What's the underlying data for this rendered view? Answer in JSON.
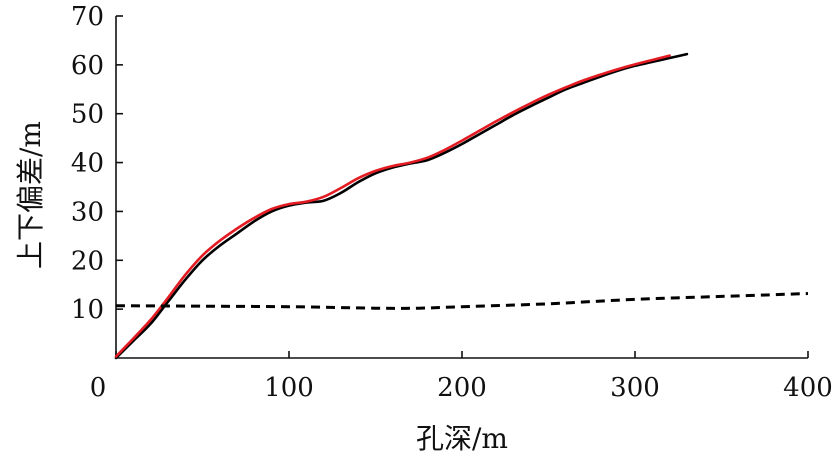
{
  "chart_data": {
    "type": "line",
    "title": "",
    "xlabel": "孔深/m",
    "ylabel": "上下偏差/m",
    "xlim": [
      0,
      400
    ],
    "ylim": [
      0,
      70
    ],
    "x_ticks": [
      0,
      100,
      200,
      300,
      400
    ],
    "y_ticks": [
      10,
      20,
      30,
      40,
      50,
      60,
      70
    ],
    "grid": false,
    "series": [
      {
        "color": "#000000",
        "style": "solid",
        "points": [
          [
            0,
            0
          ],
          [
            10,
            3.5
          ],
          [
            20,
            7
          ],
          [
            30,
            11.5
          ],
          [
            40,
            16
          ],
          [
            50,
            20
          ],
          [
            60,
            23
          ],
          [
            70,
            25.5
          ],
          [
            80,
            28
          ],
          [
            90,
            30
          ],
          [
            100,
            31.2
          ],
          [
            110,
            31.8
          ],
          [
            120,
            32.2
          ],
          [
            130,
            33.8
          ],
          [
            140,
            36
          ],
          [
            150,
            37.8
          ],
          [
            160,
            39
          ],
          [
            170,
            39.8
          ],
          [
            180,
            40.5
          ],
          [
            190,
            42
          ],
          [
            200,
            43.8
          ],
          [
            210,
            45.8
          ],
          [
            220,
            47.8
          ],
          [
            230,
            49.8
          ],
          [
            240,
            51.6
          ],
          [
            250,
            53.3
          ],
          [
            260,
            55
          ],
          [
            270,
            56.3
          ],
          [
            280,
            57.6
          ],
          [
            290,
            58.8
          ],
          [
            300,
            59.8
          ],
          [
            310,
            60.6
          ],
          [
            320,
            61.4
          ],
          [
            330,
            62.2
          ]
        ]
      },
      {
        "color": "#e31c23",
        "style": "solid",
        "points": [
          [
            0,
            0.3
          ],
          [
            10,
            4
          ],
          [
            20,
            7.8
          ],
          [
            30,
            12.3
          ],
          [
            40,
            17
          ],
          [
            50,
            21
          ],
          [
            60,
            24
          ],
          [
            70,
            26.5
          ],
          [
            80,
            28.7
          ],
          [
            90,
            30.5
          ],
          [
            100,
            31.5
          ],
          [
            110,
            32
          ],
          [
            120,
            33
          ],
          [
            130,
            34.8
          ],
          [
            140,
            36.8
          ],
          [
            150,
            38.3
          ],
          [
            160,
            39.3
          ],
          [
            170,
            40
          ],
          [
            180,
            41
          ],
          [
            190,
            42.6
          ],
          [
            200,
            44.5
          ],
          [
            210,
            46.5
          ],
          [
            220,
            48.5
          ],
          [
            230,
            50.4
          ],
          [
            240,
            52.2
          ],
          [
            250,
            53.9
          ],
          [
            260,
            55.4
          ],
          [
            270,
            56.8
          ],
          [
            280,
            58
          ],
          [
            290,
            59.1
          ],
          [
            300,
            60.1
          ],
          [
            310,
            61
          ],
          [
            320,
            61.9
          ]
        ]
      },
      {
        "color": "#000000",
        "style": "dashed",
        "points": [
          [
            0,
            10.7
          ],
          [
            50,
            10.6
          ],
          [
            100,
            10.5
          ],
          [
            150,
            10.2
          ],
          [
            175,
            10.2
          ],
          [
            200,
            10.5
          ],
          [
            250,
            11.1
          ],
          [
            300,
            12
          ],
          [
            350,
            12.6
          ],
          [
            400,
            13.2
          ]
        ]
      }
    ]
  }
}
